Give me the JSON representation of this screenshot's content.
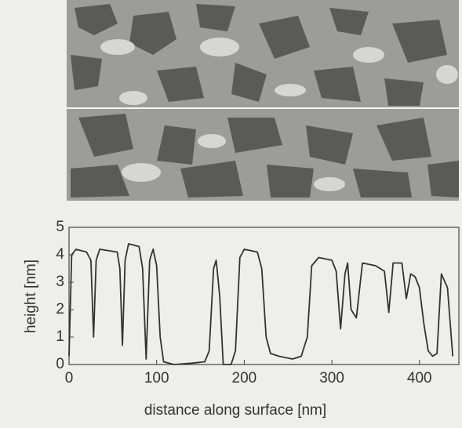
{
  "chart_data": {
    "type": "line",
    "xlabel": "distance along surface  [nm]",
    "ylabel": "height  [nm]",
    "x": [
      0,
      3,
      8,
      20,
      25,
      28,
      31,
      35,
      55,
      58,
      61,
      64,
      68,
      80,
      84,
      88,
      92,
      96,
      100,
      104,
      108,
      120,
      140,
      155,
      160,
      165,
      168,
      172,
      176,
      185,
      190,
      195,
      200,
      215,
      220,
      225,
      230,
      240,
      255,
      265,
      272,
      277,
      285,
      300,
      305,
      310,
      315,
      318,
      322,
      328,
      335,
      350,
      360,
      365,
      370,
      380,
      385,
      390,
      395,
      400,
      405,
      410,
      415,
      420,
      425,
      432,
      438
    ],
    "values": [
      0.3,
      4.0,
      4.2,
      4.1,
      3.8,
      1.0,
      3.8,
      4.2,
      4.1,
      3.5,
      0.7,
      3.8,
      4.4,
      4.3,
      3.5,
      0.2,
      3.8,
      4.2,
      3.6,
      1.0,
      0.1,
      0.0,
      0.05,
      0.1,
      0.5,
      3.5,
      3.8,
      2.5,
      0.0,
      0.0,
      0.5,
      3.9,
      4.2,
      4.1,
      3.5,
      1.0,
      0.4,
      0.3,
      0.2,
      0.3,
      1.0,
      3.6,
      3.9,
      3.8,
      3.4,
      1.3,
      3.3,
      3.7,
      2.0,
      1.7,
      3.7,
      3.6,
      3.4,
      1.9,
      3.7,
      3.7,
      2.4,
      3.3,
      3.2,
      2.8,
      1.5,
      0.5,
      0.3,
      0.4,
      3.3,
      2.8,
      0.3
    ],
    "color": "#333333",
    "xlim": [
      0,
      445
    ],
    "ylim": [
      0,
      5
    ],
    "xticks": [
      0,
      100,
      200,
      300,
      400
    ],
    "yticks": [
      0,
      1,
      2,
      3,
      4,
      5
    ]
  }
}
